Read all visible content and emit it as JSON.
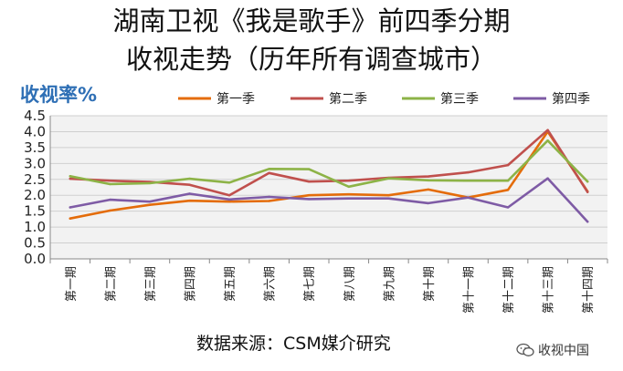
{
  "title": {
    "line1": "湖南卫视《我是歌手》前四季分期",
    "line2": "收视走势（历年所有调查城市）"
  },
  "source": "数据来源：CSM媒介研究",
  "watermark": {
    "text": "收视中国",
    "icon": "wechat-icon"
  },
  "chart_data": {
    "type": "line",
    "title": "",
    "ylabel": "收视率%",
    "xlabel": "",
    "ylim": [
      0,
      4.5
    ],
    "yticks": [
      "0.0",
      "0.5",
      "1.0",
      "1.5",
      "2.0",
      "2.5",
      "3.0",
      "3.5",
      "4.0",
      "4.5"
    ],
    "grid": true,
    "legend_position": "top",
    "categories": [
      "第一期",
      "第二期",
      "第三期",
      "第四期",
      "第五期",
      "第六期",
      "第七期",
      "第八期",
      "第九期",
      "第十期",
      "第十一期",
      "第十二期",
      "第十三期",
      "第十四期"
    ],
    "series": [
      {
        "name": "第一季",
        "color": "#E46C0A",
        "values": [
          1.27,
          1.52,
          1.7,
          1.83,
          1.8,
          1.82,
          2.0,
          2.03,
          2.0,
          2.18,
          1.93,
          2.17,
          4.0,
          2.12
        ]
      },
      {
        "name": "第二季",
        "color": "#C0504D",
        "values": [
          2.52,
          2.46,
          2.42,
          2.33,
          2.0,
          2.7,
          2.43,
          2.46,
          2.55,
          2.59,
          2.72,
          2.95,
          4.05,
          2.1
        ]
      },
      {
        "name": "第三季",
        "color": "#8DB347",
        "values": [
          2.6,
          2.35,
          2.38,
          2.52,
          2.4,
          2.83,
          2.82,
          2.27,
          2.53,
          2.47,
          2.46,
          2.46,
          3.72,
          2.43
        ]
      },
      {
        "name": "第四季",
        "color": "#7E5BA5",
        "values": [
          1.62,
          1.86,
          1.8,
          2.05,
          1.87,
          1.95,
          1.88,
          1.9,
          1.9,
          1.75,
          1.93,
          1.62,
          2.53,
          1.17
        ]
      }
    ]
  }
}
